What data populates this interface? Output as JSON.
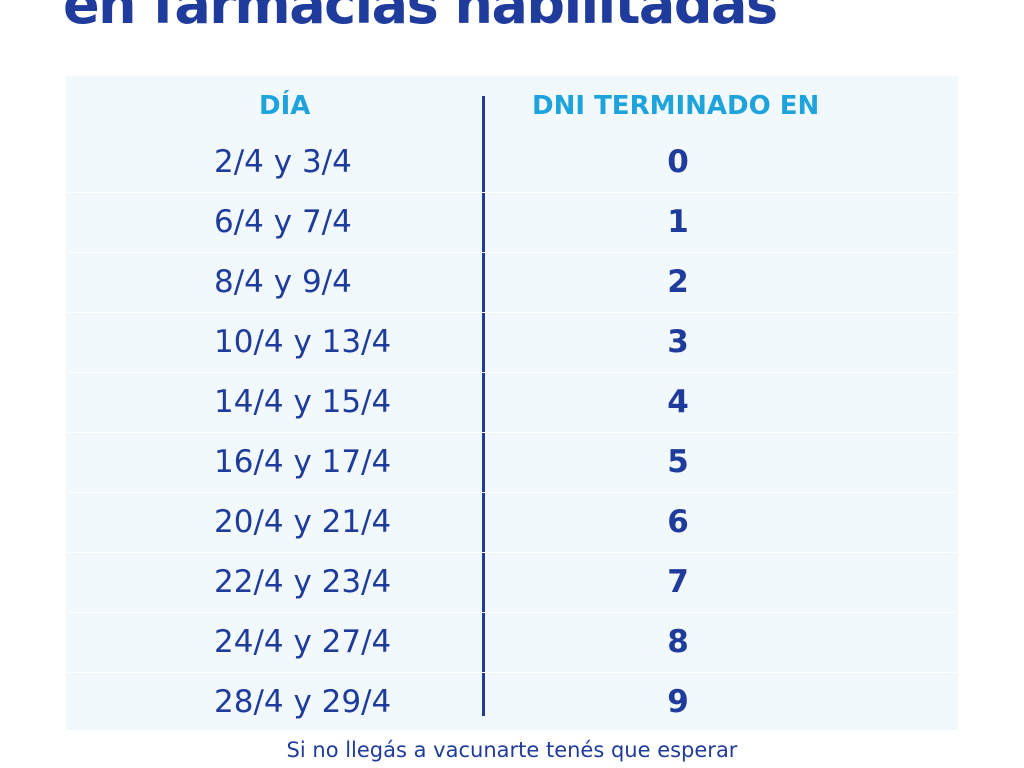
{
  "title": "en farmacias habilitadas",
  "table": {
    "headers": {
      "dia": "DÍA",
      "dni": "DNI TERMINADO EN"
    },
    "rows": [
      {
        "dia": "2/4 y 3/4",
        "dni": "0"
      },
      {
        "dia": "6/4 y 7/4",
        "dni": "1"
      },
      {
        "dia": "8/4 y 9/4",
        "dni": "2"
      },
      {
        "dia": "10/4 y 13/4",
        "dni": "3"
      },
      {
        "dia": "14/4 y 15/4",
        "dni": "4"
      },
      {
        "dia": "16/4 y 17/4",
        "dni": "5"
      },
      {
        "dia": "20/4 y 21/4",
        "dni": "6"
      },
      {
        "dia": "22/4 y 23/4",
        "dni": "7"
      },
      {
        "dia": "24/4 y 27/4",
        "dni": "8"
      },
      {
        "dia": "28/4 y 29/4",
        "dni": "9"
      }
    ]
  },
  "footnote": {
    "line1": "Si no llegás a vacunarte tenés que esperar"
  },
  "colors": {
    "primary": "#1f3b9b",
    "header_accent": "#1ea3dc",
    "panel_background": "#f1f9fd"
  }
}
